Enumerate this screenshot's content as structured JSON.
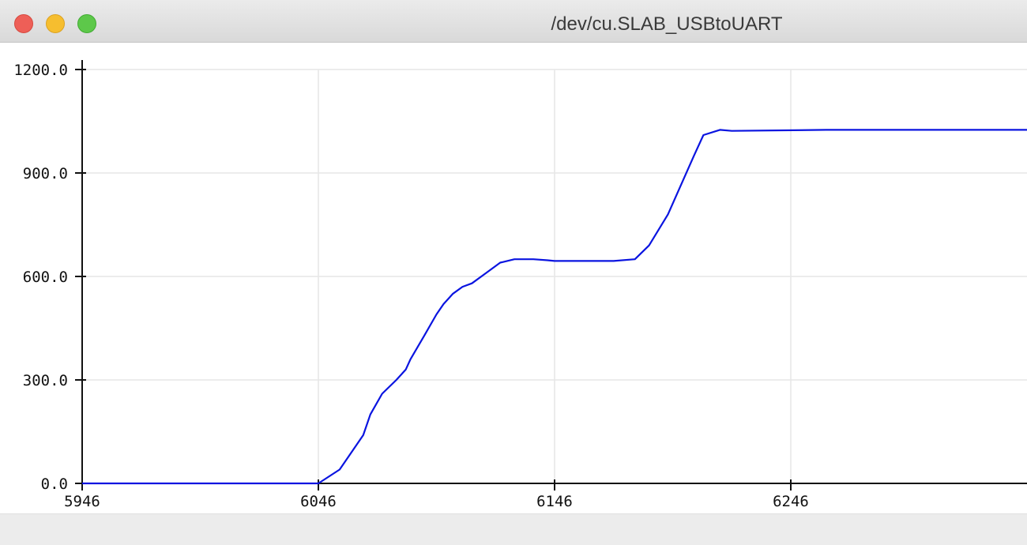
{
  "window": {
    "title": "/dev/cu.SLAB_USBtoUART"
  },
  "chart_data": {
    "type": "line",
    "title": "",
    "xlabel": "",
    "ylabel": "",
    "xlim": [
      5946,
      6346
    ],
    "ylim": [
      0,
      1200
    ],
    "grid": true,
    "x_ticks": [
      "5946",
      "6046",
      "6146",
      "6246"
    ],
    "y_ticks": [
      "0.0",
      "300.0",
      "600.0",
      "900.0",
      "1200.0"
    ],
    "series": [
      {
        "color": "#0a14e0",
        "x": [
          5946,
          6046,
          6055,
          6061,
          6065,
          6068,
          6073,
          6079,
          6083,
          6085,
          6091,
          6096,
          6099,
          6103,
          6107,
          6111,
          6117,
          6123,
          6129,
          6133,
          6137,
          6143,
          6146,
          6151,
          6171,
          6180,
          6186,
          6194,
          6205,
          6209,
          6216,
          6221,
          6261,
          6346
        ],
        "y": [
          0,
          0,
          40,
          100,
          140,
          200,
          260,
          300,
          330,
          360,
          430,
          490,
          520,
          550,
          570,
          580,
          610,
          640,
          650,
          650,
          650,
          647,
          645,
          645,
          645,
          650,
          690,
          780,
          950,
          1010,
          1025,
          1022,
          1025,
          1025
        ]
      }
    ]
  }
}
